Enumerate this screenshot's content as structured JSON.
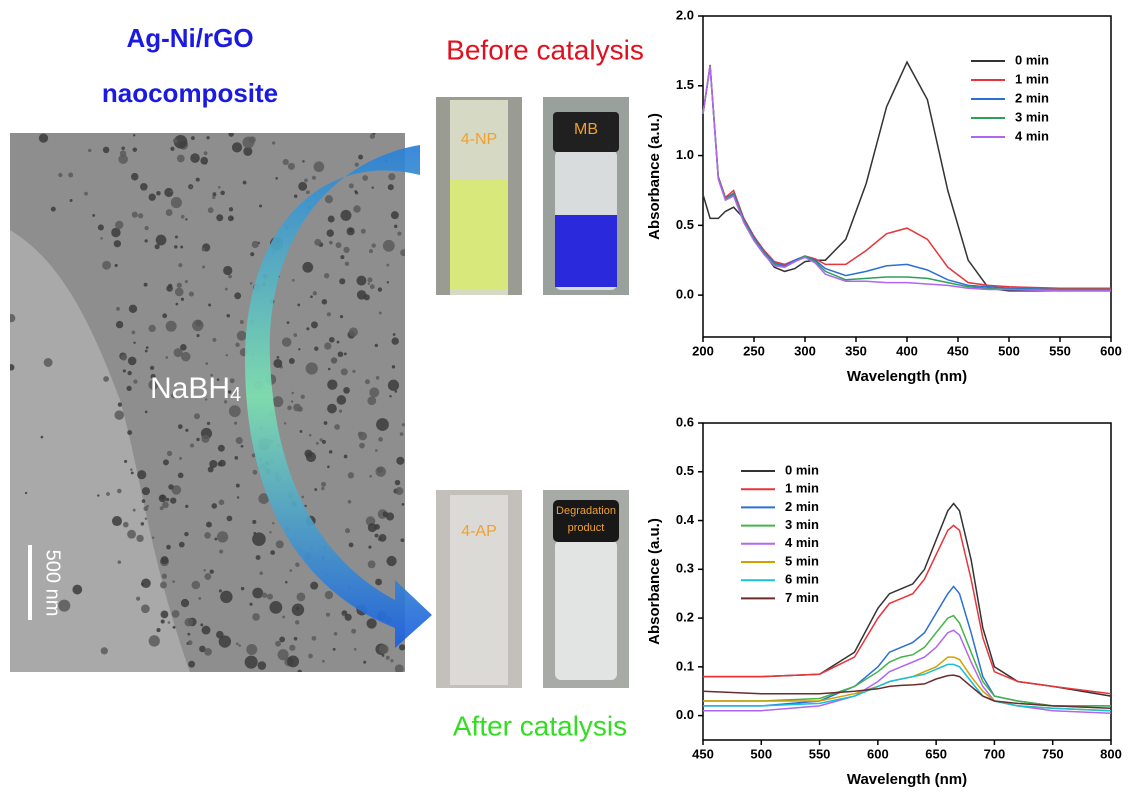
{
  "figure": {
    "title_lines": [
      "Ag-Ni/rGO",
      "naocomposite"
    ],
    "before_label": "Before catalysis",
    "after_label": "After catalysis",
    "reagent": {
      "text": "NaBH",
      "sub": "4"
    },
    "scale_bar": "500 nm",
    "vials": [
      {
        "lines": [
          "4-NP"
        ]
      },
      {
        "lines": [
          "MB"
        ]
      },
      {
        "lines": [
          "4-AP"
        ]
      },
      {
        "lines": [
          "Degradation",
          "product"
        ]
      }
    ]
  },
  "chart_data": [
    {
      "type": "line",
      "x_label": "Wavelength (nm)",
      "y_label": "Absorbance (a.u.)",
      "xlim": [
        200,
        600
      ],
      "ylim": [
        -0.3,
        2.0
      ],
      "xticks": [
        200,
        250,
        300,
        350,
        400,
        450,
        500,
        550,
        600
      ],
      "yticks": [
        {
          "value": 0,
          "label": "0.0"
        },
        0.5,
        {
          "value": 1,
          "label": "1.0"
        },
        1.5,
        {
          "value": 2,
          "label": "2.0"
        }
      ],
      "legend": "upper right",
      "x": [
        200,
        207,
        215,
        222,
        230,
        240,
        250,
        260,
        270,
        280,
        290,
        300,
        310,
        320,
        340,
        360,
        380,
        400,
        420,
        440,
        460,
        480,
        500,
        550,
        600
      ],
      "series": [
        {
          "name": "0 min",
          "color": "#333333",
          "values": [
            0.72,
            0.55,
            0.55,
            0.6,
            0.63,
            0.55,
            0.42,
            0.3,
            0.2,
            0.17,
            0.19,
            0.24,
            0.25,
            0.25,
            0.4,
            0.8,
            1.35,
            1.67,
            1.4,
            0.75,
            0.25,
            0.05,
            0.03,
            0.03,
            0.03
          ]
        },
        {
          "name": "1 min",
          "color": "#e8343b",
          "values": [
            1.3,
            1.65,
            0.85,
            0.7,
            0.75,
            0.55,
            0.42,
            0.32,
            0.24,
            0.22,
            0.25,
            0.28,
            0.26,
            0.22,
            0.22,
            0.32,
            0.44,
            0.48,
            0.4,
            0.2,
            0.09,
            0.07,
            0.06,
            0.05,
            0.05
          ]
        },
        {
          "name": "2 min",
          "color": "#2a6fd6",
          "values": [
            1.3,
            1.64,
            0.84,
            0.69,
            0.73,
            0.54,
            0.41,
            0.31,
            0.23,
            0.21,
            0.25,
            0.28,
            0.25,
            0.19,
            0.14,
            0.17,
            0.21,
            0.22,
            0.18,
            0.11,
            0.07,
            0.06,
            0.05,
            0.04,
            0.04
          ]
        },
        {
          "name": "3 min",
          "color": "#2ca05a",
          "values": [
            1.3,
            1.64,
            0.84,
            0.69,
            0.72,
            0.53,
            0.4,
            0.3,
            0.22,
            0.2,
            0.24,
            0.28,
            0.24,
            0.17,
            0.11,
            0.12,
            0.13,
            0.13,
            0.12,
            0.09,
            0.06,
            0.05,
            0.04,
            0.04,
            0.04
          ]
        },
        {
          "name": "4 min",
          "color": "#b066f0",
          "values": [
            1.3,
            1.64,
            0.83,
            0.68,
            0.71,
            0.52,
            0.39,
            0.29,
            0.21,
            0.2,
            0.24,
            0.27,
            0.23,
            0.15,
            0.1,
            0.1,
            0.09,
            0.09,
            0.08,
            0.07,
            0.05,
            0.04,
            0.04,
            0.03,
            0.03
          ]
        }
      ]
    },
    {
      "type": "line",
      "x_label": "Wavelength (nm)",
      "y_label": "Absorbance (a.u.)",
      "xlim": [
        450,
        800
      ],
      "ylim": [
        -0.05,
        0.6
      ],
      "xticks": [
        450,
        500,
        550,
        600,
        650,
        700,
        750,
        800
      ],
      "yticks": [
        {
          "value": 0,
          "label": "0.0"
        },
        0.1,
        0.2,
        0.3,
        0.4,
        0.5,
        0.6
      ],
      "legend": "upper left",
      "x": [
        450,
        500,
        550,
        580,
        600,
        610,
        620,
        630,
        640,
        650,
        660,
        665,
        670,
        680,
        690,
        700,
        720,
        750,
        800
      ],
      "series": [
        {
          "name": "0 min",
          "color": "#333333",
          "values": [
            0.08,
            0.08,
            0.085,
            0.13,
            0.22,
            0.25,
            0.26,
            0.27,
            0.3,
            0.36,
            0.42,
            0.435,
            0.42,
            0.32,
            0.18,
            0.1,
            0.07,
            0.06,
            0.04
          ]
        },
        {
          "name": "1 min",
          "color": "#e8343b",
          "values": [
            0.08,
            0.08,
            0.085,
            0.12,
            0.2,
            0.23,
            0.24,
            0.25,
            0.28,
            0.33,
            0.38,
            0.39,
            0.38,
            0.28,
            0.16,
            0.09,
            0.07,
            0.06,
            0.045
          ]
        },
        {
          "name": "2 min",
          "color": "#2a6fd6",
          "values": [
            0.02,
            0.02,
            0.03,
            0.06,
            0.1,
            0.13,
            0.14,
            0.15,
            0.17,
            0.21,
            0.25,
            0.265,
            0.25,
            0.17,
            0.08,
            0.04,
            0.03,
            0.02,
            0.02
          ]
        },
        {
          "name": "3 min",
          "color": "#44b34a",
          "values": [
            0.03,
            0.03,
            0.035,
            0.06,
            0.09,
            0.11,
            0.12,
            0.125,
            0.14,
            0.17,
            0.2,
            0.205,
            0.19,
            0.13,
            0.07,
            0.04,
            0.03,
            0.02,
            0.02
          ]
        },
        {
          "name": "4 min",
          "color": "#b066f0",
          "values": [
            0.01,
            0.01,
            0.02,
            0.04,
            0.07,
            0.09,
            0.1,
            0.11,
            0.12,
            0.14,
            0.17,
            0.175,
            0.165,
            0.11,
            0.06,
            0.03,
            0.02,
            0.01,
            0.005
          ]
        },
        {
          "name": "5 min",
          "color": "#d4a000",
          "values": [
            0.03,
            0.03,
            0.03,
            0.045,
            0.06,
            0.07,
            0.075,
            0.08,
            0.09,
            0.1,
            0.12,
            0.12,
            0.115,
            0.08,
            0.05,
            0.03,
            0.02,
            0.015,
            0.01
          ]
        },
        {
          "name": "6 min",
          "color": "#18c0d8",
          "values": [
            0.02,
            0.02,
            0.025,
            0.04,
            0.06,
            0.07,
            0.075,
            0.08,
            0.085,
            0.095,
            0.105,
            0.105,
            0.1,
            0.07,
            0.04,
            0.03,
            0.02,
            0.015,
            0.01
          ]
        },
        {
          "name": "7 min",
          "color": "#6b2c2c",
          "values": [
            0.05,
            0.045,
            0.045,
            0.05,
            0.055,
            0.06,
            0.062,
            0.063,
            0.065,
            0.075,
            0.082,
            0.083,
            0.08,
            0.06,
            0.04,
            0.03,
            0.025,
            0.02,
            0.015
          ]
        }
      ]
    }
  ]
}
